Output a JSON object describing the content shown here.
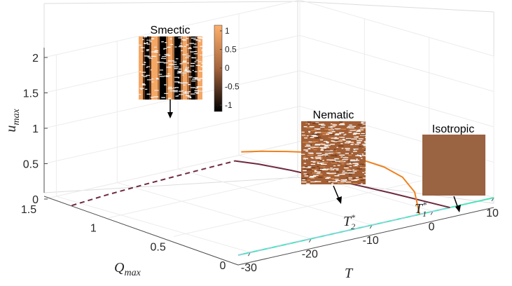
{
  "chart_data": {
    "type": "line",
    "view": "3d",
    "axes": {
      "x": {
        "label": "T",
        "ticks": [
          -30,
          -20,
          -10,
          0,
          10
        ],
        "tick_labels": [
          "-30",
          "-20",
          "-10",
          "0",
          "10"
        ],
        "range": [
          -32,
          10
        ]
      },
      "y": {
        "label": "Q",
        "label_sub": "max",
        "ticks": [
          0,
          0.5,
          1,
          1.5
        ],
        "tick_labels": [
          "0",
          "0.5",
          "1",
          "1.5"
        ],
        "range": [
          0,
          1.5
        ]
      },
      "z": {
        "label": "u",
        "label_sub": "max",
        "ticks": [
          0,
          0.5,
          1,
          1.5,
          2
        ],
        "tick_labels": [
          "0",
          "0.5",
          "1",
          "1.5",
          "2"
        ],
        "range": [
          0,
          2
        ]
      }
    },
    "grid": true,
    "series": [
      {
        "role": "smectic u_max",
        "color": "#f0821e",
        "style": "solid",
        "x": [
          -31.5,
          -28,
          -24,
          -20,
          -16,
          -12,
          -8,
          -5,
          -3,
          -2.2
        ],
        "y": [
          0,
          0,
          0,
          0,
          0,
          0,
          0,
          0,
          0,
          0
        ],
        "z": [
          1.45,
          1.39,
          1.31,
          1.22,
          1.11,
          0.97,
          0.78,
          0.58,
          0.33,
          0.0
        ]
      },
      {
        "role": "Q_max (dashed)",
        "color": "#6e2a3e",
        "style": "dashed",
        "x": [
          -31.5,
          -25,
          -18,
          -12,
          -7,
          -3,
          -2.2
        ],
        "y": [
          1.31,
          1.35,
          1.38,
          1.4,
          1.415,
          1.425,
          1.43
        ],
        "z": [
          0,
          0,
          0,
          0,
          0,
          0,
          0
        ]
      },
      {
        "role": "Q_max (solid)",
        "color": "#6e2a3e",
        "style": "solid",
        "x": [
          -2.2,
          -1,
          0,
          1,
          2,
          2.8
        ],
        "y": [
          1.43,
          1.3,
          1.1,
          0.78,
          0.42,
          0.0
        ],
        "z": [
          0,
          0,
          0,
          0,
          0,
          0
        ]
      },
      {
        "role": "baseline Q=0,u=0",
        "color": "#4fe3b9",
        "style": "solid",
        "x": [
          -32,
          10
        ],
        "y": [
          0,
          0
        ],
        "z": [
          0,
          0
        ]
      },
      {
        "role": "baseline overlay",
        "color": "#a6c8f0",
        "style": "dashed",
        "x": [
          -32,
          3
        ],
        "y": [
          0,
          0
        ],
        "z": [
          0,
          0
        ]
      }
    ],
    "annotations": [
      {
        "text": "T",
        "sup": "*",
        "sub": "2"
      },
      {
        "text": "T",
        "sup": "*",
        "sub": "1"
      }
    ],
    "insets": [
      {
        "title": "Smectic",
        "kind": "stripes",
        "colorbar": {
          "ticks": [
            "1",
            "0.5",
            "0",
            "-0.5",
            "-1"
          ],
          "colors": [
            "#ffb06c",
            "#a4643c",
            "#000000"
          ]
        }
      },
      {
        "title": "Nematic",
        "kind": "noise"
      },
      {
        "title": "Isotropic",
        "kind": "uniform",
        "color": "#9a6341"
      }
    ]
  }
}
